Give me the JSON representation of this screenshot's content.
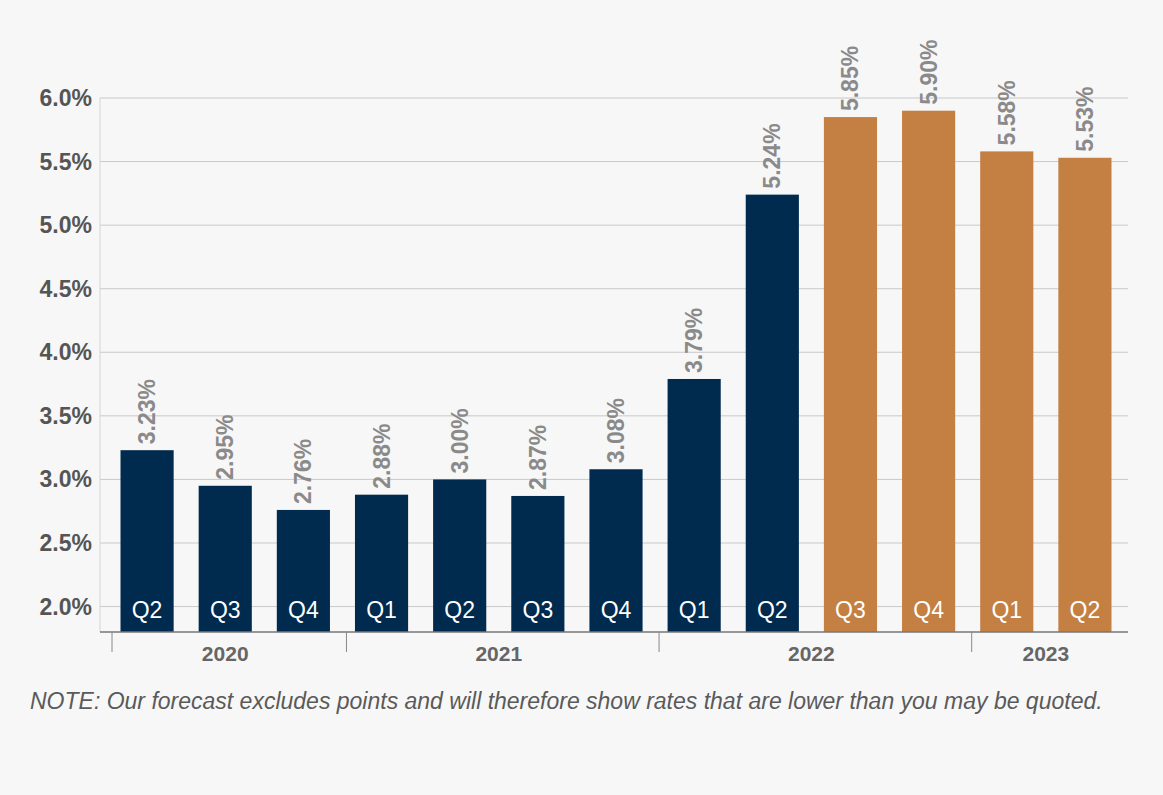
{
  "chart_data": {
    "type": "bar",
    "categories": [
      "Q2",
      "Q3",
      "Q4",
      "Q1",
      "Q2",
      "Q3",
      "Q4",
      "Q1",
      "Q2",
      "Q3",
      "Q4",
      "Q1",
      "Q2"
    ],
    "values": [
      3.23,
      2.95,
      2.76,
      2.88,
      3.0,
      2.87,
      3.08,
      3.79,
      5.24,
      5.85,
      5.9,
      5.58,
      5.53
    ],
    "value_labels": [
      "3.23%",
      "2.95%",
      "2.76%",
      "2.88%",
      "3.00%",
      "2.87%",
      "3.08%",
      "3.79%",
      "5.24%",
      "5.85%",
      "5.90%",
      "5.58%",
      "5.53%"
    ],
    "colors": [
      "#002a4e",
      "#002a4e",
      "#002a4e",
      "#002a4e",
      "#002a4e",
      "#002a4e",
      "#002a4e",
      "#002a4e",
      "#002a4e",
      "#c47f43",
      "#c47f43",
      "#c47f43",
      "#c47f43"
    ],
    "groups": [
      {
        "label": "2020",
        "start": 0,
        "count": 3
      },
      {
        "label": "2021",
        "start": 3,
        "count": 4
      },
      {
        "label": "2022",
        "start": 7,
        "count": 4
      },
      {
        "label": "2023",
        "start": 11,
        "count": 2
      }
    ],
    "ylim": [
      1.8,
      6.0
    ],
    "yticks": [
      {
        "value": 2.0,
        "label": "2.0%"
      },
      {
        "value": 2.5,
        "label": "2.5%"
      },
      {
        "value": 3.0,
        "label": "3.0%"
      },
      {
        "value": 3.5,
        "label": "3.5%"
      },
      {
        "value": 4.0,
        "label": "4.0%"
      },
      {
        "value": 4.5,
        "label": "4.5%"
      },
      {
        "value": 5.0,
        "label": "5.0%"
      },
      {
        "value": 5.5,
        "label": "5.5%"
      },
      {
        "value": 6.0,
        "label": "6.0%"
      }
    ],
    "grid": true,
    "data_labels": true,
    "note": "NOTE: Our forecast excludes points and will therefore show rates that are lower than you may be quoted."
  }
}
